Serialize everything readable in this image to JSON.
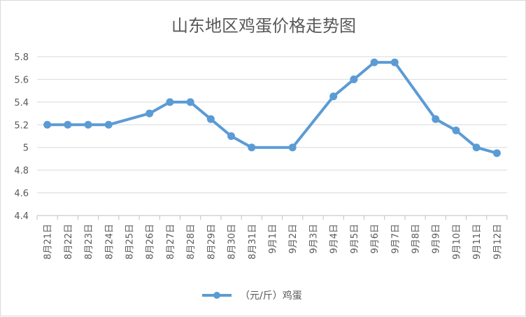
{
  "chart_data": {
    "type": "line",
    "title": "山东地区鸡蛋价格走势图",
    "xlabel": "",
    "ylabel": "",
    "ylim": [
      4.4,
      5.8
    ],
    "yticks": [
      4.4,
      4.6,
      4.8,
      5,
      5.2,
      5.4,
      5.6,
      5.8
    ],
    "grid": true,
    "legend_position": "bottom",
    "color": "#5b9bd5",
    "categories": [
      "8月21日",
      "8月22日",
      "8月23日",
      "8月24日",
      "8月25日",
      "8月26日",
      "8月27日",
      "8月28日",
      "8月29日",
      "8月30日",
      "8月31日",
      "9月1日",
      "9月2日",
      "9月3日",
      "9月4日",
      "9月5日",
      "9月6日",
      "9月7日",
      "9月8日",
      "9月9日",
      "9月10日",
      "9月11日",
      "9月12日"
    ],
    "series": [
      {
        "name": "（元/斤）鸡蛋",
        "values": [
          5.2,
          5.2,
          5.2,
          5.2,
          null,
          5.3,
          5.4,
          5.4,
          5.25,
          5.1,
          5.0,
          null,
          5.0,
          null,
          5.45,
          5.6,
          5.75,
          5.75,
          null,
          5.25,
          5.15,
          5.0,
          4.95
        ]
      }
    ]
  }
}
